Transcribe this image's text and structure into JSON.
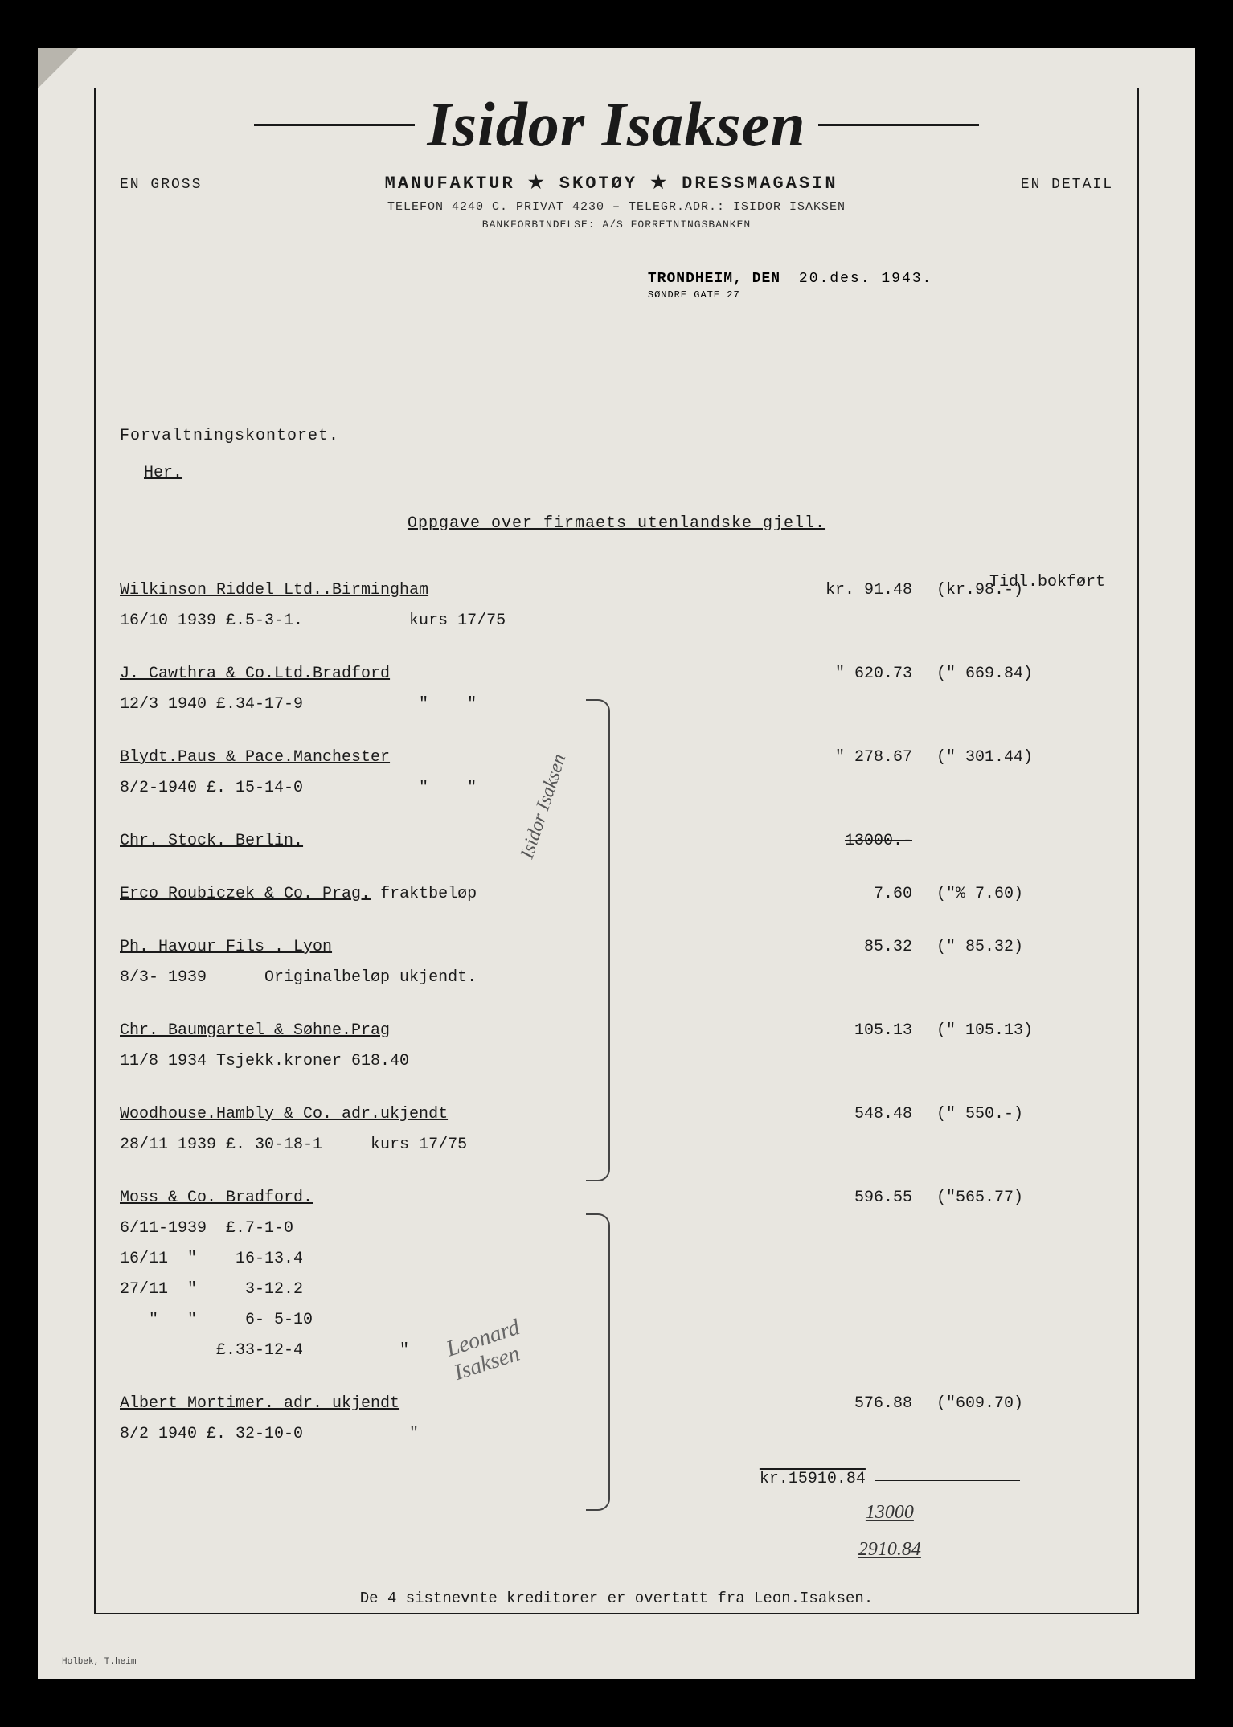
{
  "letterhead": {
    "company": "Isidor Isaksen",
    "left_label": "EN GROSS",
    "right_label": "EN DETAIL",
    "products": "MANUFAKTUR ★ SKOTØY ★ DRESSMAGASIN",
    "contact": "TELEFON 4240 C. PRIVAT 4230 – TELEGR.ADR.: ISIDOR ISAKSEN",
    "bank": "BANKFORBINDELSE: A/S FORRETNINGSBANKEN"
  },
  "date": {
    "city_label": "TRONDHEIM, DEN",
    "value": "20.des. 1943.",
    "address": "SØNDRE GATE 27"
  },
  "addressee": {
    "name": "Forvaltningskontoret.",
    "loc": "Her."
  },
  "subject": "Oppgave over firmaets utenlandske gjell.",
  "col_header": "Tidl.bokført",
  "entries": [
    {
      "name": "Wilkinson Riddel Ltd..Birmingham",
      "detail": "16/10 1939 £.5-3-1.           kurs 17/75",
      "amount": "kr. 91.48",
      "booked": "(kr.98.-)"
    },
    {
      "name": "J. Cawthra & Co.Ltd.Bradford",
      "detail": "12/3 1940 £.34-17-9            \"    \"",
      "amount": "\" 620.73",
      "booked": "(\" 669.84)"
    },
    {
      "name": "Blydt.Paus & Pace.Manchester",
      "detail": "8/2-1940 £. 15-14-0            \"    \"",
      "amount": "\" 278.67",
      "booked": "(\" 301.44)"
    },
    {
      "name": "Chr. Stock. Berlin.",
      "detail": "",
      "amount": "13000.-",
      "amount_struck": true,
      "booked": ""
    },
    {
      "name": "Erco Roubiczek & Co. Prag.",
      "name_suffix": " fraktbeløp",
      "detail": "",
      "amount": "7.60",
      "booked": "(\"%  7.60)"
    },
    {
      "name": "Ph. Havour Fils . Lyon",
      "detail": "8/3- 1939      Originalbeløp ukjendt.",
      "amount": "85.32",
      "booked": "(\"  85.32)"
    },
    {
      "name": "Chr. Baumgartel & Søhne.Prag",
      "detail": "11/8 1934 Tsjekk.kroner 618.40",
      "amount": "105.13",
      "booked": "(\" 105.13)"
    },
    {
      "name": "Woodhouse.Hambly & Co. adr.ukjendt",
      "detail": "28/11 1939 £. 30-18-1     kurs 17/75",
      "amount": "548.48",
      "booked": "(\" 550.-)"
    },
    {
      "name": "Moss & Co. Bradford.",
      "detail": "6/11-1939  £.7-1-0\n16/11  \"    16-13.4\n27/11  \"     3-12.2\n   \"   \"     6- 5-10\n          £.33-12-4          \"",
      "amount": "596.55",
      "booked": "(\"565.77)"
    },
    {
      "name": "Albert Mortimer. adr. ukjendt",
      "detail": "8/2 1940 £. 32-10-0           \"",
      "amount": "576.88",
      "booked": "(\"609.70)"
    }
  ],
  "totals": {
    "sum": "kr.15910.84",
    "hand1": "13000",
    "hand2": "2910.84"
  },
  "footer": "De 4 sistnevnte kreditorer er overtatt fra Leon.Isaksen.",
  "annotations": {
    "side1": "Isidor Isaksen",
    "side2": "Leonard\nIsaksen"
  },
  "printer": "Holbek, T.heim"
}
